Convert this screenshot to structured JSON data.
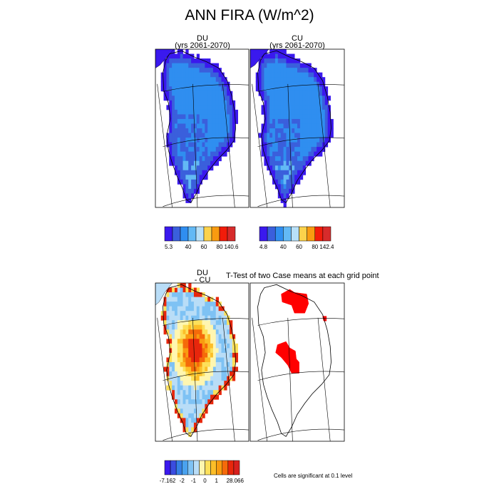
{
  "figure": {
    "title": "ANN FIRA (W/m^2)",
    "ttest_title": "T-Test of two Case means at each grid point",
    "significance_note": "Cells are significant at 0.1 level"
  },
  "panels": [
    {
      "id": "du",
      "title_line1": "DU",
      "title_line2": "(yrs 2061-2070)"
    },
    {
      "id": "cu",
      "title_line1": "CU",
      "title_line2": "(yrs 2061-2070)"
    },
    {
      "id": "diff",
      "title_line1": "DU",
      "title_line2": "- CU"
    },
    {
      "id": "ttest",
      "title_line1": "",
      "title_line2": ""
    }
  ],
  "colors": {
    "abs_scale": [
      "#3a19ee",
      "#3a5fdc",
      "#2f8ef0",
      "#63b9f5",
      "#b8e0f8",
      "#fcd24b",
      "#f99b10",
      "#f21c0a",
      "#d72b2b"
    ],
    "diff_scale": [
      "#3a19ee",
      "#3a4ce0",
      "#3580e6",
      "#4aa2ee",
      "#7ec2f4",
      "#b9ddf7",
      "#fff6b0",
      "#fde05a",
      "#fcbe28",
      "#f99b10",
      "#f56a0a",
      "#e8270c",
      "#d8201e"
    ],
    "significant": "#ff0000"
  },
  "colorbars": [
    {
      "id": "du",
      "labels": [
        "5.3",
        "40",
        "60",
        "80",
        "140.6"
      ]
    },
    {
      "id": "cu",
      "labels": [
        "4.8",
        "40",
        "60",
        "80",
        "142.4"
      ]
    },
    {
      "id": "diff",
      "labels": [
        "-7.162",
        "-2",
        "-1",
        "0",
        "1",
        "2",
        "8.066"
      ]
    }
  ],
  "chart_data": [
    {
      "type": "heatmap",
      "title": "DU (yrs 2061-2070)",
      "variable": "ANN FIRA",
      "units": "W/m^2",
      "min": 5.3,
      "max": 140.6,
      "colorbar_labels": [
        5.3,
        40,
        60,
        80,
        140.6
      ]
    },
    {
      "type": "heatmap",
      "title": "CU (yrs 2061-2070)",
      "variable": "ANN FIRA",
      "units": "W/m^2",
      "min": 4.8,
      "max": 142.4,
      "colorbar_labels": [
        4.8,
        40,
        60,
        80,
        142.4
      ]
    },
    {
      "type": "heatmap",
      "title": "DU - CU",
      "variable": "ANN FIRA",
      "units": "W/m^2",
      "min": -7.162,
      "max": 8.066,
      "colorbar_labels": [
        -7.162,
        -2,
        -1,
        0,
        1,
        2,
        8.066
      ]
    },
    {
      "type": "heatmap",
      "title": "T-Test of two Case means at each grid point",
      "significance_level": 0.1
    }
  ]
}
